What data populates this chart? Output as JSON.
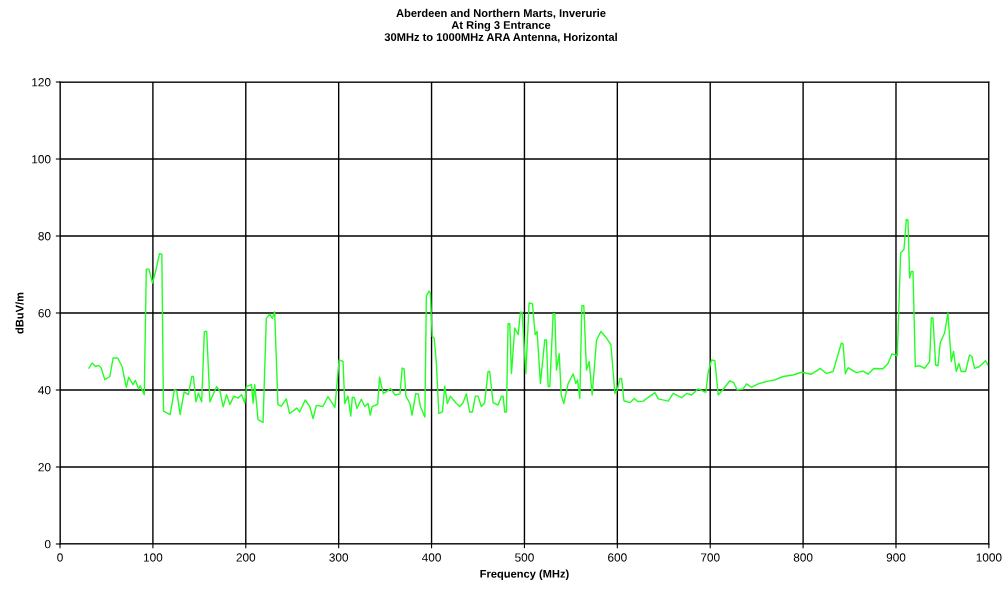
{
  "chart_data": {
    "type": "line",
    "title": "Aberdeen and Northern Marts, Inverurie\nAt Ring 3 Entrance\n30MHz to 1000MHz ARA Antenna, Horizontal",
    "xlabel": "Frequency (MHz)",
    "ylabel": "dBuV/m",
    "xlim": [
      0,
      1000
    ],
    "xticks": [
      0,
      100,
      200,
      300,
      400,
      500,
      600,
      700,
      800,
      900,
      1000
    ],
    "ylim": [
      0,
      120
    ],
    "yticks": [
      0,
      20,
      40,
      60,
      80,
      100,
      120
    ],
    "grid": true,
    "legend": false,
    "marker": "none",
    "line_style": "solid",
    "series": [
      {
        "color": "#22ff22",
        "x": [
          31.1,
          34.6,
          38.2,
          41.8,
          44.3,
          48.2,
          53.6,
          57.1,
          62.1,
          66.8,
          71.4,
          73.9,
          78.6,
          81.1,
          84.6,
          86.4,
          90.7,
          92.9,
          95.7,
          99.6,
          103.6,
          107.1,
          109.6,
          111.4,
          118.6,
          123.2,
          125.7,
          129.3,
          133.6,
          138.2,
          141.8,
          143.6,
          146.4,
          148.9,
          152.5,
          155.4,
          157.9,
          161.4,
          168.6,
          172.1,
          175.7,
          179.3,
          182.9,
          187.1,
          191.8,
          195.4,
          198.9,
          200.7,
          206.1,
          207.9,
          209.6,
          213.2,
          218.6,
          222.1,
          225.7,
          228.6,
          231.1,
          234.6,
          238.2,
          243.6,
          247.1,
          250.7,
          255,
          258,
          264,
          268.8,
          272.4,
          276,
          283,
          288.5,
          296,
          300.4,
          304.7,
          306.5,
          310,
          313,
          314.7,
          317,
          319.6,
          324.4,
          328,
          331.6,
          334,
          336,
          342,
          344,
          348,
          351.6,
          355.9,
          360.5,
          366,
          368.4,
          370.5,
          372.4,
          376.7,
          379,
          383,
          385.6,
          388,
          392.8,
          394.4,
          397.3,
          398.7,
          400.7,
          402.8,
          405.2,
          407.8,
          411.7,
          414.2,
          417,
          420.3,
          426.7,
          430.3,
          433.9,
          437.5,
          441,
          444,
          447.2,
          450,
          453.6,
          457.2,
          460.8,
          462.6,
          466.2,
          471.6,
          475.2,
          477,
          478.8,
          480.6,
          482.4,
          484.2,
          486,
          489.6,
          493.2,
          495.7,
          497.5,
          501.5,
          505,
          508.6,
          511.5,
          513.6,
          517.2,
          521.9,
          523.7,
          525.5,
          527.3,
          530.9,
          532.7,
          534.5,
          537.4,
          539.6,
          542.4,
          547.1,
          552.4,
          555.3,
          557.1,
          559.6,
          561.8,
          563.9,
          566.8,
          569.7,
          572.9,
          577.6,
          582.3,
          588.4,
          593.1,
          597.4,
          599.9,
          602.8,
          604.6,
          607.1,
          613.6,
          618.3,
          621.9,
          628,
          633.3,
          640.5,
          644.1,
          654.8,
          660.2,
          669.2,
          674.6,
          680,
          687.1,
          695.3,
          697.8,
          701.4,
          705,
          708.6,
          714,
          721.1,
          725.4,
          729,
          735.5,
          739.1,
          744.4,
          751.6,
          762.4,
          769.5,
          778.5,
          789.2,
          798.2,
          808.9,
          818.6,
          825,
          832.3,
          841.2,
          843,
          845.5,
          848.4,
          857.3,
          864.5,
          869.9,
          876,
          886,
          891.4,
          895.7,
          901.4,
          905,
          908.6,
          911.1,
          912.9,
          914.7,
          916.5,
          918.3,
          920.8,
          925.4,
          930.8,
          936.2,
          938,
          939.8,
          942.7,
          945.2,
          947.7,
          952.3,
          955.9,
          959.5,
          962,
          964.9,
          967.7,
          970.2,
          974.9,
          979.2,
          981.7,
          984.6,
          990,
          996.4,
          999
        ],
        "values": [
          45.7,
          47,
          46.1,
          46.4,
          45.7,
          42.7,
          43.5,
          48.3,
          48.3,
          46.1,
          40.7,
          43.3,
          41.4,
          42.5,
          40.3,
          41.1,
          38.8,
          71.4,
          71.4,
          67.8,
          71.5,
          75.4,
          75.3,
          34.5,
          33.6,
          40.1,
          39.7,
          33.6,
          39.5,
          38.8,
          43.5,
          43.5,
          36.9,
          39.2,
          36.9,
          55.2,
          55.2,
          36.9,
          40.9,
          39.7,
          35.6,
          38.8,
          36.2,
          38.4,
          37.9,
          38.8,
          36.6,
          40.9,
          41.4,
          36.6,
          41.4,
          32.3,
          31.6,
          58.6,
          59.7,
          58.6,
          60.3,
          36.2,
          35.8,
          37.7,
          33.9,
          34.5,
          35.3,
          34.3,
          37.4,
          35.7,
          32.6,
          36,
          35.7,
          38.3,
          35.5,
          47.8,
          47.4,
          36.5,
          38.4,
          33.2,
          38.1,
          38,
          35.2,
          37.6,
          35.7,
          36.5,
          33.5,
          35.7,
          36.3,
          43.3,
          39.1,
          39.6,
          40.4,
          38.7,
          39,
          45.7,
          45.4,
          38.4,
          36.5,
          33.5,
          39.1,
          39,
          35.7,
          33,
          64.4,
          65.7,
          65.2,
          53.9,
          53.5,
          47,
          33.9,
          34.3,
          41,
          36.5,
          38.4,
          36.5,
          35.7,
          36.7,
          39,
          34.3,
          34.3,
          38.4,
          38.4,
          35.7,
          36.7,
          44.8,
          44.8,
          36.7,
          36.1,
          38.4,
          38.4,
          34.3,
          34.3,
          57.2,
          57.2,
          44.3,
          56.1,
          54.4,
          60.2,
          60.2,
          44.3,
          62.6,
          62.4,
          54.4,
          55.2,
          41.7,
          53,
          53,
          40.9,
          40.9,
          59.8,
          59.8,
          45.2,
          49.4,
          38.7,
          36.5,
          41.7,
          44.2,
          41.7,
          42.6,
          37.8,
          61.9,
          61.9,
          45.2,
          47.4,
          38.7,
          53,
          55.2,
          53.5,
          51.7,
          39.1,
          40,
          43,
          43,
          37.2,
          36.7,
          37.8,
          37,
          37.1,
          38.1,
          39.3,
          37.7,
          37.1,
          39.1,
          38,
          39.1,
          38.7,
          40.3,
          39.4,
          44.6,
          47.8,
          47.6,
          38.7,
          40.2,
          42.4,
          41.9,
          40,
          40.3,
          41.6,
          40.7,
          41.6,
          42.3,
          42.6,
          43.5,
          43.9,
          44.6,
          44.1,
          45.6,
          44.3,
          44.8,
          52.2,
          52,
          44.2,
          45.8,
          44.5,
          44.9,
          44.1,
          45.6,
          45.5,
          46.9,
          49.4,
          48.9,
          75.6,
          76.5,
          84.3,
          84.1,
          69.1,
          70.8,
          70.8,
          46.1,
          46.3,
          45.6,
          47.4,
          58.7,
          58.7,
          46.5,
          46.3,
          52.3,
          54.8,
          60,
          47.4,
          50,
          44.8,
          46.9,
          44.8,
          44.8,
          49.1,
          48.7,
          45.6,
          46.1,
          47.6,
          46.5
        ]
      }
    ]
  }
}
